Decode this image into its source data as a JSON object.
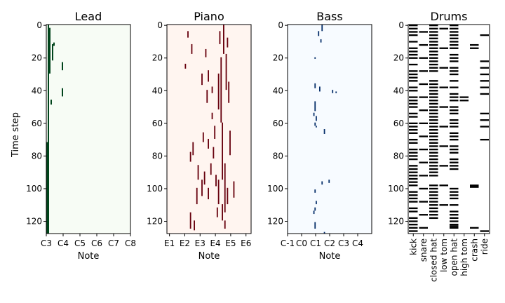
{
  "chart_data": {
    "type": "heatmap",
    "ylabel": "Time step",
    "ylim": [
      127.5,
      -0.5
    ],
    "yticks": [
      0,
      20,
      40,
      60,
      80,
      100,
      120
    ],
    "panels": [
      {
        "title": "Lead",
        "xlabel": "Note",
        "xrange": [
          48,
          108
        ],
        "xticks": [
          {
            "value": 48,
            "label": "C3"
          },
          {
            "value": 60,
            "label": "C4"
          },
          {
            "value": 72,
            "label": "C5"
          },
          {
            "value": 84,
            "label": "C6"
          },
          {
            "value": 96,
            "label": "C7"
          },
          {
            "value": 108,
            "label": "C8"
          }
        ],
        "background": "#f7fcf5",
        "color": "#00441b",
        "notes": [
          {
            "pitch": 49,
            "start": 0,
            "end": 128
          },
          {
            "pitch": 48,
            "start": 72,
            "end": 128
          },
          {
            "pitch": 50,
            "start": 2,
            "end": 30
          },
          {
            "pitch": 52,
            "start": 12,
            "end": 22
          },
          {
            "pitch": 59,
            "start": 23,
            "end": 28
          },
          {
            "pitch": 59,
            "start": 39,
            "end": 44
          },
          {
            "pitch": 51,
            "start": 46,
            "end": 49
          },
          {
            "pitch": 53,
            "start": 11,
            "end": 13
          }
        ]
      },
      {
        "title": "Piano",
        "xlabel": "Note",
        "xrange": [
          26,
          92
        ],
        "xticks": [
          {
            "value": 28,
            "label": "E1"
          },
          {
            "value": 40,
            "label": "E2"
          },
          {
            "value": 52,
            "label": "E3"
          },
          {
            "value": 64,
            "label": "E4"
          },
          {
            "value": 76,
            "label": "E5"
          },
          {
            "value": 88,
            "label": "E6"
          }
        ],
        "background": "#fff5f0",
        "color": "#67000d",
        "notes": [
          {
            "pitch": 70,
            "start": 0,
            "end": 18
          },
          {
            "pitch": 68,
            "start": 20,
            "end": 60
          },
          {
            "pitch": 72,
            "start": 18,
            "end": 40
          },
          {
            "pitch": 66,
            "start": 30,
            "end": 52
          },
          {
            "pitch": 74,
            "start": 35,
            "end": 48
          },
          {
            "pitch": 69,
            "start": 60,
            "end": 95
          },
          {
            "pitch": 71,
            "start": 85,
            "end": 115
          },
          {
            "pitch": 66,
            "start": 95,
            "end": 110
          },
          {
            "pitch": 63,
            "start": 62,
            "end": 70
          },
          {
            "pitch": 75,
            "start": 65,
            "end": 80
          },
          {
            "pitch": 42,
            "start": 4,
            "end": 8
          },
          {
            "pitch": 45,
            "start": 12,
            "end": 18
          },
          {
            "pitch": 40,
            "start": 24,
            "end": 27
          },
          {
            "pitch": 56,
            "start": 15,
            "end": 20
          },
          {
            "pitch": 53,
            "start": 30,
            "end": 37
          },
          {
            "pitch": 58,
            "start": 28,
            "end": 35
          },
          {
            "pitch": 61,
            "start": 38,
            "end": 42
          },
          {
            "pitch": 57,
            "start": 40,
            "end": 48
          },
          {
            "pitch": 46,
            "start": 72,
            "end": 80
          },
          {
            "pitch": 50,
            "start": 86,
            "end": 95
          },
          {
            "pitch": 55,
            "start": 90,
            "end": 98
          },
          {
            "pitch": 60,
            "start": 85,
            "end": 92
          },
          {
            "pitch": 53,
            "start": 95,
            "end": 105
          },
          {
            "pitch": 49,
            "start": 100,
            "end": 110
          },
          {
            "pitch": 58,
            "start": 100,
            "end": 107
          },
          {
            "pitch": 64,
            "start": 92,
            "end": 99
          },
          {
            "pitch": 62,
            "start": 75,
            "end": 82
          },
          {
            "pitch": 54,
            "start": 66,
            "end": 72
          },
          {
            "pitch": 61,
            "start": 54,
            "end": 58
          },
          {
            "pitch": 78,
            "start": 96,
            "end": 106
          },
          {
            "pitch": 73,
            "start": 100,
            "end": 110
          },
          {
            "pitch": 69,
            "start": 110,
            "end": 120
          },
          {
            "pitch": 44,
            "start": 115,
            "end": 125
          },
          {
            "pitch": 47,
            "start": 120,
            "end": 126
          },
          {
            "pitch": 73,
            "start": 8,
            "end": 14
          },
          {
            "pitch": 67,
            "start": 4,
            "end": 12
          },
          {
            "pitch": 44,
            "start": 78,
            "end": 84
          },
          {
            "pitch": 58,
            "start": 70,
            "end": 76
          },
          {
            "pitch": 65,
            "start": 112,
            "end": 118
          },
          {
            "pitch": 71,
            "start": 120,
            "end": 125
          }
        ]
      },
      {
        "title": "Bass",
        "xlabel": "Note",
        "xrange": [
          0,
          72
        ],
        "xticks": [
          {
            "value": 0,
            "label": "C-1"
          },
          {
            "value": 12,
            "label": "C0"
          },
          {
            "value": 24,
            "label": "C1"
          },
          {
            "value": 36,
            "label": "C2"
          },
          {
            "value": 48,
            "label": "C3"
          },
          {
            "value": 60,
            "label": "C4"
          }
        ],
        "background": "#f7fbff",
        "color": "#08306b",
        "notes": [
          {
            "pitch": 29,
            "start": 0,
            "end": 4
          },
          {
            "pitch": 26,
            "start": 4,
            "end": 7
          },
          {
            "pitch": 28,
            "start": 9,
            "end": 11
          },
          {
            "pitch": 23,
            "start": 20,
            "end": 21
          },
          {
            "pitch": 23,
            "start": 36,
            "end": 39
          },
          {
            "pitch": 27,
            "start": 38,
            "end": 41
          },
          {
            "pitch": 38,
            "start": 40,
            "end": 42
          },
          {
            "pitch": 41,
            "start": 41,
            "end": 42
          },
          {
            "pitch": 23,
            "start": 47,
            "end": 53
          },
          {
            "pitch": 22,
            "start": 54,
            "end": 56
          },
          {
            "pitch": 24,
            "start": 56,
            "end": 59
          },
          {
            "pitch": 23,
            "start": 60,
            "end": 62
          },
          {
            "pitch": 24,
            "start": 62,
            "end": 63
          },
          {
            "pitch": 31,
            "start": 64,
            "end": 67
          },
          {
            "pitch": 35,
            "start": 95,
            "end": 97
          },
          {
            "pitch": 29,
            "start": 96,
            "end": 98
          },
          {
            "pitch": 23,
            "start": 101,
            "end": 103
          },
          {
            "pitch": 24,
            "start": 108,
            "end": 110
          },
          {
            "pitch": 23,
            "start": 112,
            "end": 114
          },
          {
            "pitch": 22,
            "start": 114,
            "end": 116
          },
          {
            "pitch": 23,
            "start": 121,
            "end": 125
          },
          {
            "pitch": 31,
            "start": 127,
            "end": 128
          }
        ]
      },
      {
        "title": "Drums",
        "xlabel": "",
        "xrange": [
          0,
          8
        ],
        "categories": [
          "kick",
          "snare",
          "closed hat",
          "low tom",
          "open hat",
          "high tom",
          "crash",
          "ride"
        ],
        "background": "#ffffff",
        "color": "#000000",
        "hits": [
          {
            "lane": 0,
            "steps": [
              0,
              2,
              4,
              6,
              10,
              14,
              16,
              18,
              20,
              24,
              28,
              30,
              32,
              34,
              38,
              40,
              44,
              46,
              48,
              50,
              54,
              56,
              60,
              62,
              64,
              66,
              70,
              72,
              76,
              78,
              80,
              82,
              86,
              88,
              90,
              92,
              94,
              96,
              98,
              102,
              104,
              106,
              108,
              112,
              114,
              118,
              120,
              122,
              124,
              126
            ]
          },
          {
            "lane": 1,
            "steps": [
              4,
              12,
              20,
              28,
              36,
              44,
              52,
              60,
              68,
              76,
              84,
              92,
              100,
              108,
              116,
              124
            ]
          },
          {
            "lane": 2,
            "steps": [
              0,
              2,
              4,
              6,
              8,
              10,
              12,
              14,
              16,
              18,
              20,
              22,
              24,
              26,
              28,
              34,
              36,
              38,
              40,
              42,
              44,
              46,
              48,
              50,
              52,
              54,
              56,
              58,
              60,
              62,
              64,
              66,
              68,
              70,
              72,
              74,
              76,
              78,
              80,
              82,
              84,
              86,
              88,
              90,
              92,
              98,
              100,
              102,
              104,
              106,
              108,
              110,
              112,
              114,
              116,
              118
            ]
          },
          {
            "lane": 3,
            "steps": [
              2,
              14,
              26,
              38,
              50,
              62,
              74,
              86,
              98,
              110
            ]
          },
          {
            "lane": 4,
            "steps": [
              0,
              2,
              4,
              6,
              8,
              10,
              12,
              14,
              18,
              20,
              22,
              26,
              28,
              30,
              34,
              38,
              42,
              44,
              46,
              50,
              52,
              54,
              58,
              60,
              62,
              66,
              68,
              70,
              74,
              76,
              78,
              82,
              84,
              86,
              88,
              100,
              102,
              104,
              106,
              110,
              114,
              116,
              118,
              120,
              122,
              123,
              124
            ]
          },
          {
            "lane": 5,
            "steps": [
              44,
              46
            ]
          },
          {
            "lane": 6,
            "steps": [
              12,
              14,
              98,
              99,
              124
            ]
          },
          {
            "lane": 7,
            "steps": [
              6,
              22,
              26,
              30,
              34,
              38,
              42,
              54,
              58,
              62,
              70,
              126
            ]
          }
        ]
      }
    ]
  }
}
